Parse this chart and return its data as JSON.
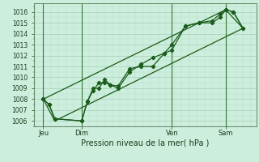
{
  "title": "Pression niveau de la mer( hPa )",
  "bg_color": "#cceedd",
  "grid_color_major": "#aaccbb",
  "grid_color_minor": "#bbddcc",
  "line_color": "#1a5c1a",
  "ylim": [
    1005.5,
    1016.8
  ],
  "yticks": [
    1006,
    1007,
    1008,
    1009,
    1010,
    1011,
    1012,
    1013,
    1014,
    1015,
    1016
  ],
  "xlim": [
    0,
    116
  ],
  "day_labels": [
    "Jeu",
    "Dim",
    "Ven",
    "Sam"
  ],
  "day_positions": [
    5,
    25,
    72,
    100
  ],
  "series1_x": [
    5,
    8,
    11,
    25,
    28,
    31,
    34,
    37,
    40,
    44,
    50,
    56,
    62,
    68,
    72,
    79,
    86,
    93,
    97,
    100,
    104,
    109
  ],
  "series1_y": [
    1008.0,
    1007.5,
    1006.2,
    1006.0,
    1007.8,
    1008.8,
    1009.5,
    1009.5,
    1009.3,
    1009.2,
    1010.8,
    1011.0,
    1011.0,
    1012.2,
    1013.0,
    1014.7,
    1015.0,
    1015.0,
    1015.5,
    1016.2,
    1016.0,
    1014.5
  ],
  "series2_x": [
    5,
    8,
    11,
    25,
    28,
    31,
    34,
    37,
    40,
    44,
    50,
    56,
    62,
    68,
    72,
    79,
    86,
    93,
    97,
    100,
    104,
    109
  ],
  "series2_y": [
    1008.0,
    1007.5,
    1006.2,
    1006.0,
    1007.8,
    1009.0,
    1009.0,
    1009.8,
    1009.3,
    1009.0,
    1010.5,
    1011.2,
    1011.8,
    1012.2,
    1012.5,
    1014.7,
    1015.0,
    1015.2,
    1015.8,
    1016.2,
    1016.0,
    1014.5
  ],
  "envelope_x": [
    5,
    11,
    109,
    100,
    5
  ],
  "envelope_y": [
    1008.0,
    1006.0,
    1014.5,
    1016.2,
    1008.0
  ]
}
